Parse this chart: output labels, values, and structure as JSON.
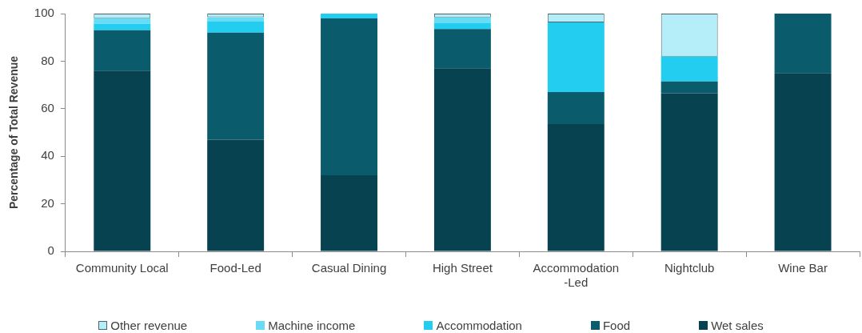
{
  "chart_data": {
    "type": "bar",
    "stacked": true,
    "ylabel": "Percentage of Total Revenue",
    "categories": [
      "Community Local",
      "Food-Led",
      "Casual Dining",
      "High Street",
      "Accommodation-Led",
      "Nightclub",
      "Wine Bar"
    ],
    "series": [
      {
        "name": "Wet sales",
        "color": "#06424f",
        "values": [
          76,
          47,
          32,
          77,
          53.5,
          66.5,
          75
        ]
      },
      {
        "name": "Food",
        "color": "#0a5c6c",
        "values": [
          17,
          45,
          66,
          16.5,
          13.5,
          5,
          25
        ]
      },
      {
        "name": "Accommodation",
        "color": "#22cdef",
        "values": [
          2.7,
          4.6,
          2,
          2.5,
          29.3,
          10.4,
          0
        ]
      },
      {
        "name": "Machine income",
        "color": "#68dcf4",
        "values": [
          2.4,
          1.9,
          0,
          2.4,
          0,
          0,
          0
        ]
      },
      {
        "name": "Other revenue",
        "color": "#b5eef9",
        "values": [
          1.9,
          1.5,
          0,
          1.6,
          3.7,
          18.1,
          0
        ]
      }
    ],
    "ylim": [
      0,
      100
    ],
    "yticks": [
      0,
      20,
      40,
      60,
      80,
      100
    ],
    "grid": false,
    "legend": "bottom"
  }
}
